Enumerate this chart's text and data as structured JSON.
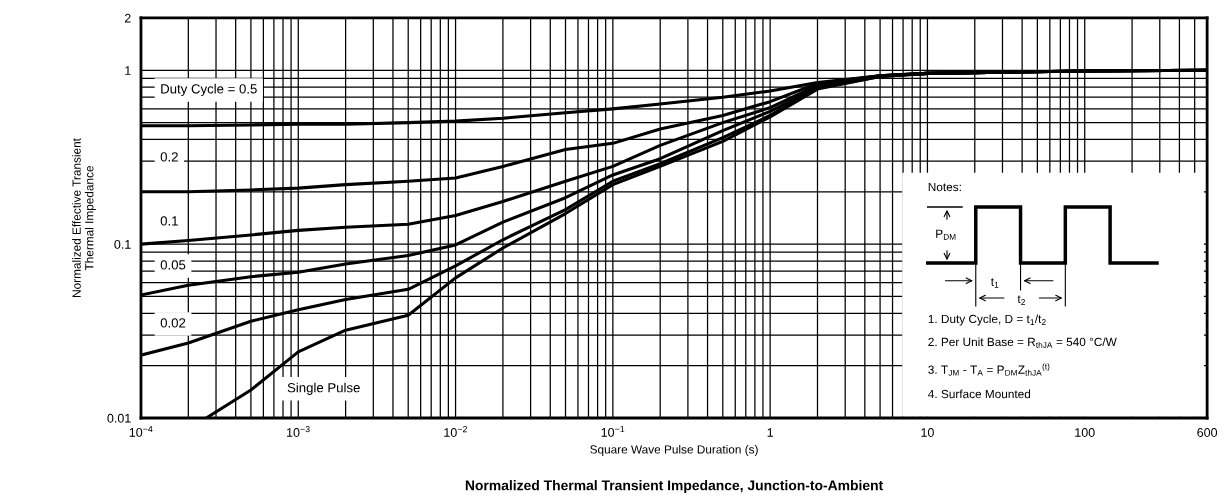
{
  "chart_data": {
    "type": "line",
    "title": "Normalized Thermal Transient Impedance, Junction-to-Ambient",
    "xlabel": "Square Wave Pulse Duration (s)",
    "ylabel": "Normalized Effective Transient\nThermal Impedance",
    "log": "xy",
    "grid": true,
    "xlim": [
      0.0001,
      600
    ],
    "ylim": [
      0.01,
      2
    ],
    "xticks": [
      {
        "value": 0.0001,
        "label": "10$^{−4}$"
      },
      {
        "value": 0.001,
        "label": "10$^{−3}$"
      },
      {
        "value": 0.01,
        "label": "10$^{−2}$"
      },
      {
        "value": 0.1,
        "label": "10$^{−1}$"
      },
      1,
      10,
      100,
      600
    ],
    "yticks": [
      0.01,
      0.1,
      1,
      2
    ],
    "x": [
      0.0001,
      0.0002,
      0.0005,
      0.001,
      0.002,
      0.005,
      0.01,
      0.02,
      0.05,
      0.1,
      0.2,
      0.5,
      1,
      2,
      5,
      10,
      100,
      600
    ],
    "series": [
      {
        "name": "Duty Cycle = 0.5",
        "color": "#000000",
        "values": [
          0.48,
          0.48,
          0.485,
          0.49,
          0.49,
          0.5,
          0.51,
          0.53,
          0.57,
          0.6,
          0.64,
          0.7,
          0.76,
          0.85,
          0.93,
          0.96,
          0.99,
          1.0
        ]
      },
      {
        "name": "0.2",
        "color": "#000000",
        "values": [
          0.2,
          0.2,
          0.205,
          0.21,
          0.22,
          0.23,
          0.24,
          0.28,
          0.35,
          0.38,
          0.46,
          0.55,
          0.66,
          0.84,
          0.93,
          0.96,
          0.99,
          1.0
        ]
      },
      {
        "name": "0.1",
        "color": "#000000",
        "values": [
          0.1,
          0.105,
          0.113,
          0.12,
          0.125,
          0.13,
          0.146,
          0.176,
          0.23,
          0.28,
          0.37,
          0.5,
          0.61,
          0.82,
          0.93,
          0.96,
          0.99,
          1.0
        ]
      },
      {
        "name": "0.05",
        "color": "#000000",
        "values": [
          0.051,
          0.058,
          0.065,
          0.069,
          0.077,
          0.086,
          0.099,
          0.134,
          0.185,
          0.25,
          0.31,
          0.45,
          0.58,
          0.8,
          0.93,
          0.96,
          0.99,
          1.0
        ]
      },
      {
        "name": "0.02",
        "color": "#000000",
        "values": [
          0.023,
          0.027,
          0.036,
          0.042,
          0.048,
          0.055,
          0.075,
          0.106,
          0.158,
          0.23,
          0.29,
          0.41,
          0.55,
          0.79,
          0.92,
          0.96,
          0.99,
          1.0
        ]
      },
      {
        "name": "Single Pulse",
        "color": "#000000",
        "x": [
          0.00026,
          0.0005,
          0.001,
          0.002,
          0.005,
          0.01,
          0.02,
          0.05,
          0.1,
          0.2,
          0.5,
          1,
          2,
          5,
          10,
          100,
          600
        ],
        "values": [
          0.01,
          0.0145,
          0.024,
          0.032,
          0.039,
          0.064,
          0.095,
          0.15,
          0.22,
          0.28,
          0.39,
          0.54,
          0.78,
          0.92,
          0.96,
          0.99,
          1.0
        ]
      }
    ],
    "annotations": [
      "Notes:",
      "P$_{DM}$",
      "t$_{1}$",
      "t$_{2}$",
      "1. Duty Cycle, D = t$_{1}$/t$_{2}$",
      "2. Per Unit Base = R$_{thJA}$ = 540 °C/W",
      "3. T$_{JM}$ - T$_{A}$ = P$_{DM}$Z$_{thJA}$$^{(t)}$",
      "4. Surface Mounted"
    ]
  }
}
